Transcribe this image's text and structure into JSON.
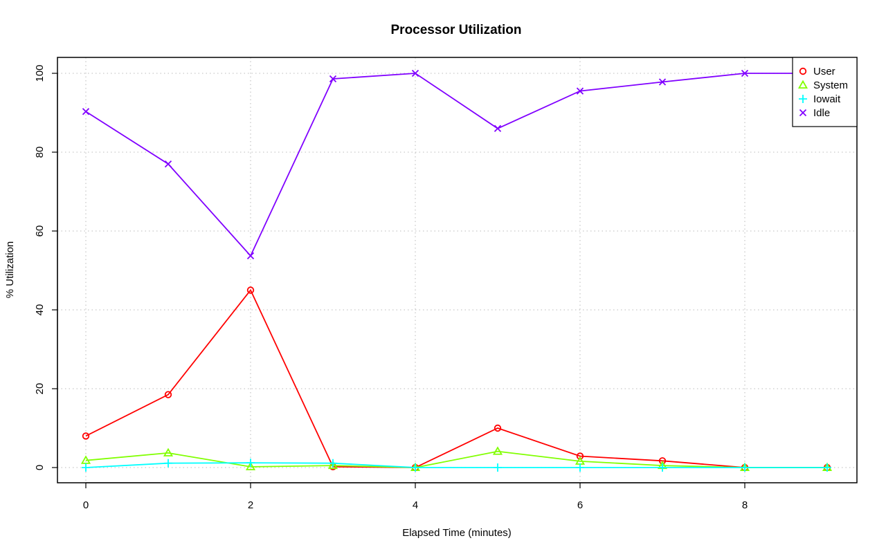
{
  "chart_data": {
    "type": "line",
    "title": "Processor Utilization",
    "xlabel": "Elapsed Time (minutes)",
    "ylabel": "% Utilization",
    "xlim": [
      0,
      9
    ],
    "ylim": [
      0,
      100
    ],
    "x_ticks": [
      "0",
      "2",
      "4",
      "6",
      "8"
    ],
    "y_ticks": [
      "0",
      "20",
      "40",
      "60",
      "80",
      "100"
    ],
    "grid": true,
    "legend_position": "top-right",
    "x": [
      0,
      1,
      2,
      3,
      4,
      5,
      6,
      7,
      8,
      9
    ],
    "series": [
      {
        "name": "User",
        "color": "#ff0000",
        "marker": "circle",
        "values": [
          8,
          18.5,
          45,
          0.2,
          0,
          10,
          2.9,
          1.7,
          0,
          0
        ]
      },
      {
        "name": "System",
        "color": "#80ff00",
        "marker": "triangle",
        "values": [
          1.8,
          3.7,
          0.2,
          0.5,
          0,
          4.1,
          1.6,
          0.5,
          0,
          0
        ]
      },
      {
        "name": "Iowait",
        "color": "#00ffff",
        "marker": "plus",
        "values": [
          0,
          1.1,
          1.2,
          1.1,
          0,
          0,
          0,
          0,
          0,
          0
        ]
      },
      {
        "name": "Idle",
        "color": "#8000ff",
        "marker": "cross",
        "values": [
          90.3,
          77,
          53.7,
          98.6,
          100,
          86,
          95.5,
          97.8,
          100,
          100
        ]
      }
    ]
  }
}
